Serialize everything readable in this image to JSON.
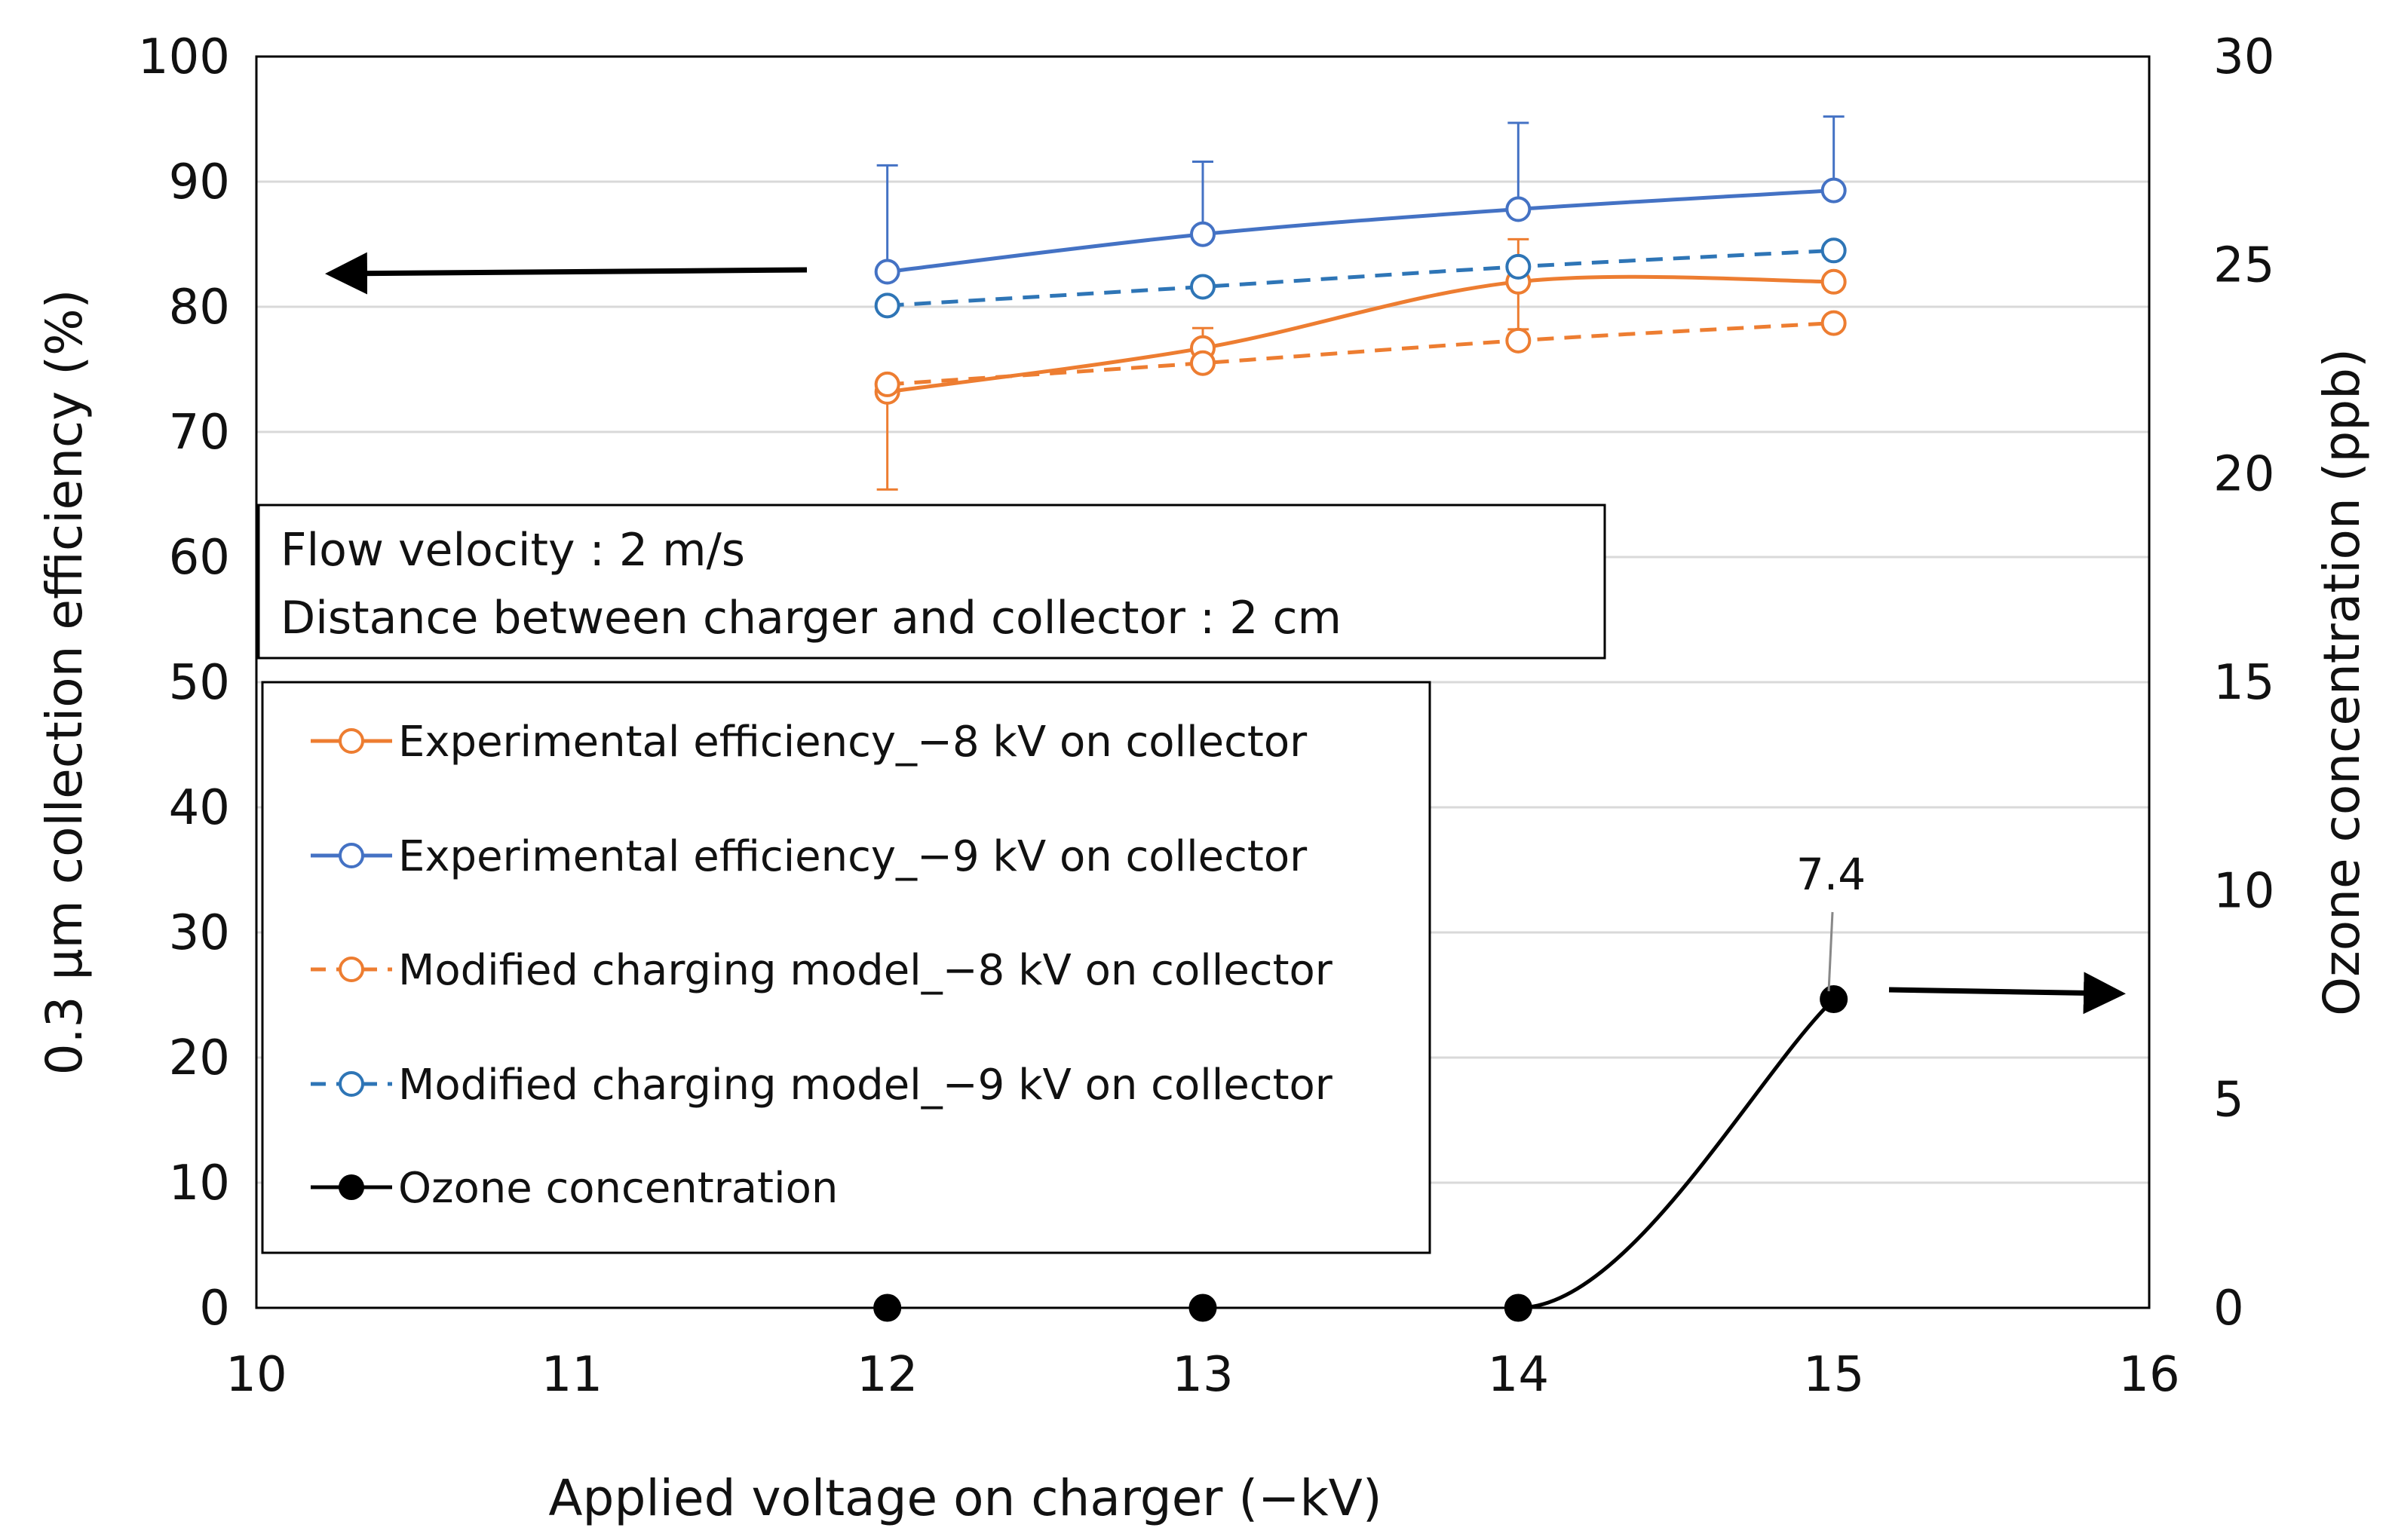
{
  "chart_data": {
    "type": "line",
    "title": "",
    "xlabel": "Applied voltage on charger (−kV)",
    "ylabel": "0.3 μm collection efficiency (%)",
    "y2label": "Ozone concentration (ppb)",
    "xlim": [
      10,
      16
    ],
    "ylim": [
      0,
      100
    ],
    "y2lim": [
      0,
      30
    ],
    "x_ticks": [
      "10",
      "11",
      "12",
      "13",
      "14",
      "15",
      "16"
    ],
    "y_ticks": [
      "0",
      "10",
      "20",
      "30",
      "40",
      "50",
      "60",
      "70",
      "80",
      "90",
      "100"
    ],
    "y2_ticks": [
      "0",
      "5",
      "10",
      "15",
      "20",
      "25",
      "30"
    ],
    "grid": true,
    "info_box": [
      "Flow velocity : 2 m/s",
      "Distance between charger and collector : 2 cm"
    ],
    "series": [
      {
        "name": "Experimental efficiency_−8 kV on collector",
        "axis": "left",
        "color": "#ED7D31",
        "dashed": false,
        "marker": "open-circle",
        "x": [
          12,
          13,
          14,
          15
        ],
        "values": [
          73.2,
          76.7,
          82.0,
          82.0
        ],
        "err_low": [
          7.8,
          1.2,
          3.8,
          0
        ],
        "err_high": [
          0,
          1.6,
          3.4,
          0
        ]
      },
      {
        "name": "Experimental efficiency_−9 kV on collector",
        "axis": "left",
        "color": "#4472C4",
        "dashed": false,
        "marker": "open-circle",
        "x": [
          12,
          13,
          14,
          15
        ],
        "values": [
          82.8,
          85.8,
          87.8,
          89.3
        ],
        "err_low": [
          0,
          0,
          0,
          0
        ],
        "err_high": [
          8.5,
          5.8,
          6.9,
          5.9
        ]
      },
      {
        "name": "Modified charging model_−8 kV on collector",
        "axis": "left",
        "color": "#ED7D31",
        "dashed": true,
        "marker": "open-circle",
        "x": [
          12,
          13,
          14,
          15
        ],
        "values": [
          73.8,
          75.5,
          77.3,
          78.7
        ]
      },
      {
        "name": "Modified charging model_−9 kV on collector",
        "axis": "left",
        "color": "#2E75B6",
        "dashed": true,
        "marker": "open-circle",
        "x": [
          12,
          13,
          14,
          15
        ],
        "values": [
          80.1,
          81.6,
          83.2,
          84.5
        ]
      },
      {
        "name": "Ozone concentration",
        "axis": "right",
        "color": "#000000",
        "dashed": false,
        "marker": "filled-circle",
        "x": [
          12,
          13,
          14,
          15
        ],
        "values": [
          0,
          0,
          0,
          7.4
        ]
      }
    ],
    "annotations": [
      {
        "text": "7.4",
        "series": "Ozone concentration",
        "x": 15,
        "value": 7.4
      }
    ],
    "arrows": [
      {
        "direction": "left",
        "meaning": "left axis"
      },
      {
        "direction": "right",
        "meaning": "right axis"
      }
    ]
  }
}
